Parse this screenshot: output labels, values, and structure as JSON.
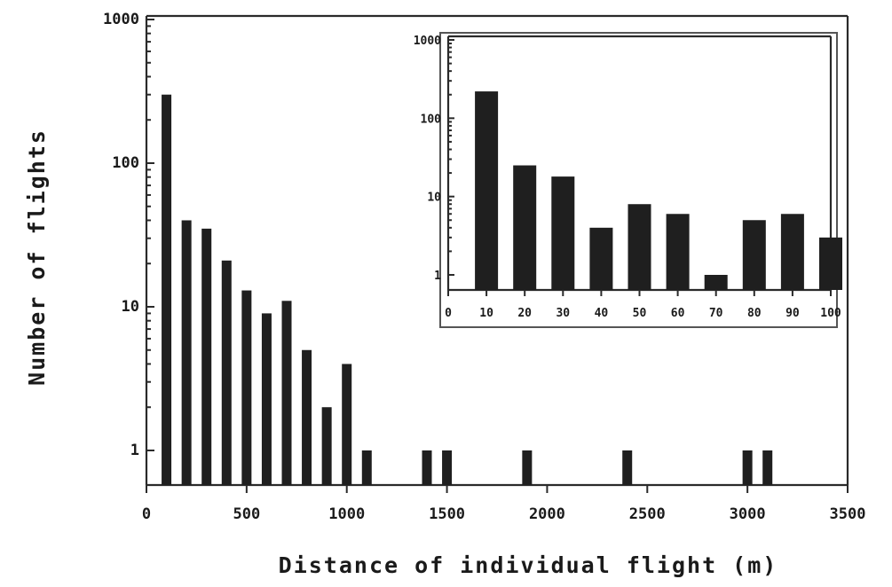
{
  "chart_data": [
    {
      "type": "bar",
      "panel": "main",
      "title": "",
      "xlabel": "Distance of individual flight (m)",
      "ylabel": "Number of flights",
      "yscale": "log",
      "xlim": [
        0,
        3500
      ],
      "ylim": [
        1,
        1000
      ],
      "x_ticks": [
        "0",
        "500",
        "1000",
        "1500",
        "2000",
        "2500",
        "3000",
        "3500"
      ],
      "y_ticks": [
        "1",
        "10",
        "100",
        "1000"
      ],
      "x": [
        100,
        200,
        300,
        400,
        500,
        600,
        700,
        800,
        900,
        1000,
        1100,
        1400,
        1500,
        1900,
        2400,
        3000,
        3100
      ],
      "values": [
        300,
        40,
        35,
        21,
        13,
        9,
        11,
        5,
        2,
        4,
        1,
        1,
        1,
        1,
        1,
        1,
        1
      ],
      "grid": false
    },
    {
      "type": "bar",
      "panel": "inset",
      "title": "",
      "xlabel": "",
      "ylabel": "",
      "yscale": "log",
      "xlim": [
        0,
        100
      ],
      "ylim": [
        0.5,
        1000
      ],
      "x_ticks": [
        "0",
        "10",
        "20",
        "30",
        "40",
        "50",
        "60",
        "70",
        "80",
        "90",
        "100"
      ],
      "y_ticks": [
        "1",
        "10",
        "100",
        "1000"
      ],
      "x": [
        10,
        20,
        30,
        40,
        50,
        60,
        70,
        80,
        90,
        100
      ],
      "values": [
        220,
        25,
        18,
        4,
        8,
        6,
        1,
        5,
        6,
        3
      ],
      "grid": false
    }
  ]
}
